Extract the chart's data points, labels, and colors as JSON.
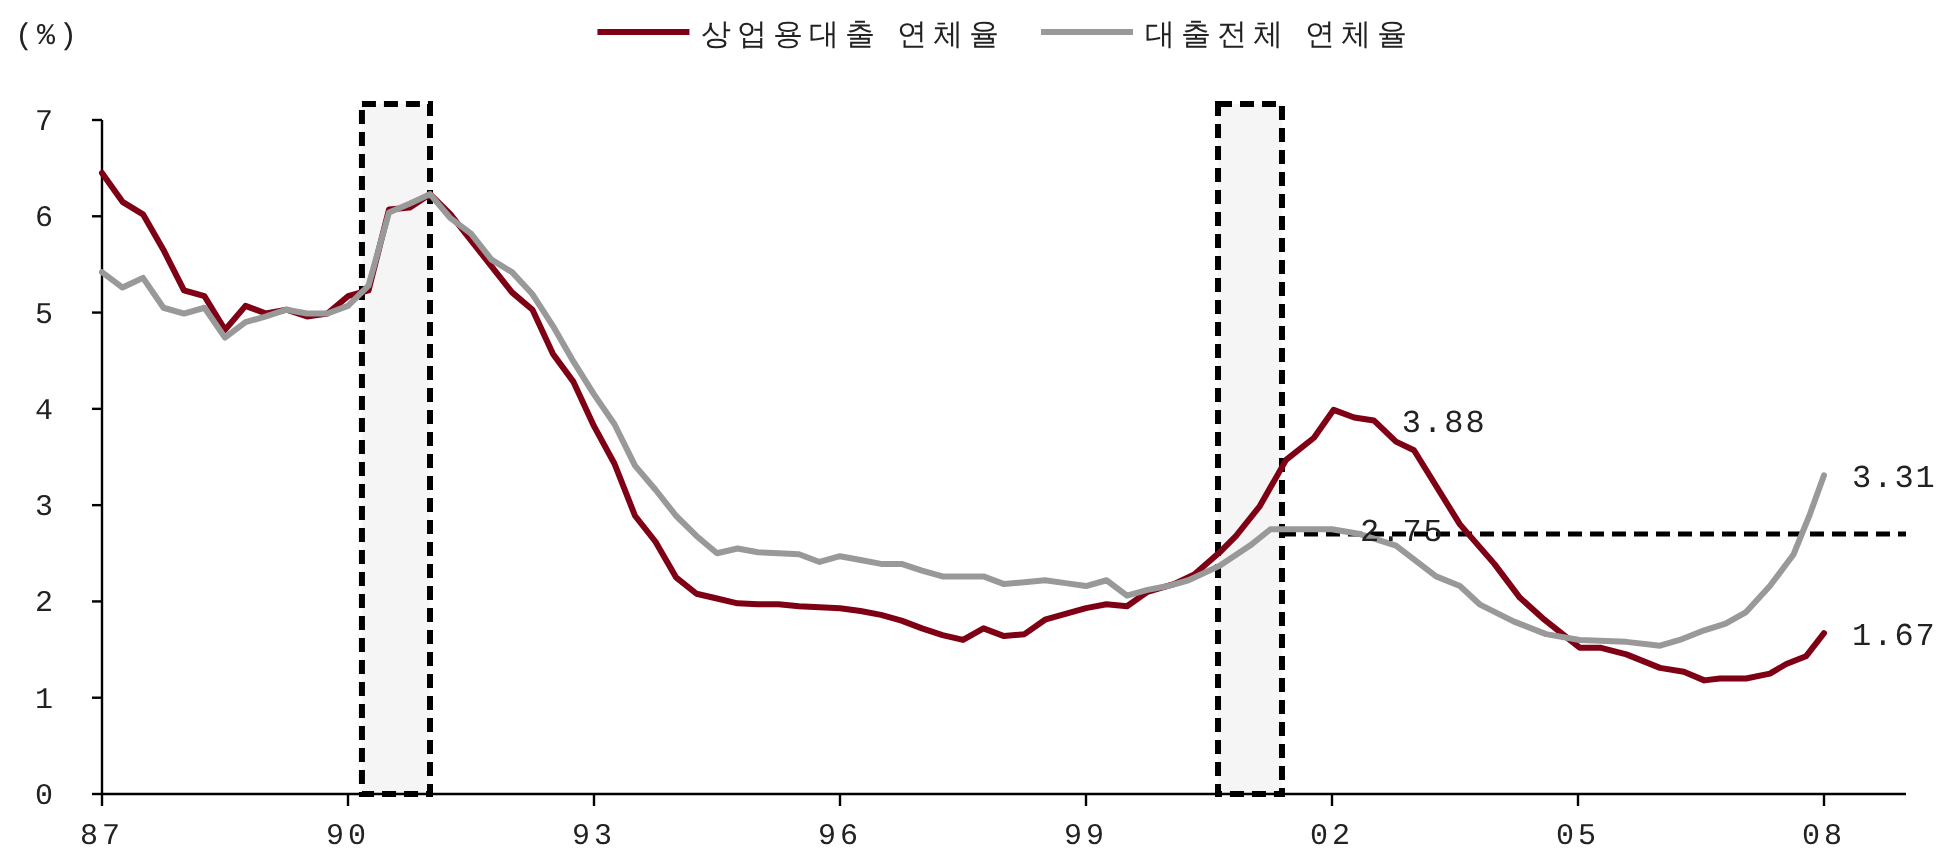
{
  "chart_data": {
    "type": "line",
    "ylabel": "(%)",
    "legend": "top",
    "xlim": [
      1987,
      2009
    ],
    "ylim": [
      0,
      7
    ],
    "xticks": [
      {
        "value": 1987,
        "label": "87"
      },
      {
        "value": 1990,
        "label": "90"
      },
      {
        "value": 1993,
        "label": "93"
      },
      {
        "value": 1996,
        "label": "96"
      },
      {
        "value": 1999,
        "label": "99"
      },
      {
        "value": 2002,
        "label": "02"
      },
      {
        "value": 2005,
        "label": "05"
      },
      {
        "value": 2008,
        "label": "08"
      }
    ],
    "yticks": [
      0,
      1,
      2,
      3,
      4,
      5,
      6,
      7
    ],
    "series": [
      {
        "name": "상업용대출 연체율",
        "color": "#7f0015",
        "x": [
          1987,
          1987.25,
          1987.5,
          1987.75,
          1988,
          1988.25,
          1988.5,
          1988.75,
          1989,
          1989.25,
          1989.5,
          1989.75,
          1990,
          1990.25,
          1990.5,
          1990.75,
          1991,
          1991.25,
          1991.5,
          1991.75,
          1992,
          1992.25,
          1992.5,
          1992.75,
          1993,
          1993.25,
          1993.5,
          1993.75,
          1994,
          1994.25,
          1994.5,
          1994.75,
          1995,
          1995.25,
          1995.5,
          1995.75,
          1996,
          1996.25,
          1996.5,
          1996.75,
          1997,
          1997.25,
          1997.5,
          1997.75,
          1998,
          1998.25,
          1998.5,
          1998.75,
          1999,
          1999.25,
          1999.5,
          1999.75,
          2000.07,
          2000.32,
          2000.63,
          2000.83,
          2001.12,
          2001.44,
          2001.78,
          2002.02,
          2002.27,
          2002.51,
          2002.78,
          2003,
          2003.56,
          2003.98,
          2004.29,
          2004.59,
          2005.02,
          2005.27,
          2005.59,
          2006,
          2006.29,
          2006.54,
          2006.73,
          2007.05,
          2007.34,
          2007.54,
          2007.78,
          2008
        ],
        "values": [
          6.45,
          6.15,
          6.02,
          5.65,
          5.23,
          5.17,
          4.82,
          5.07,
          4.99,
          5.03,
          4.96,
          4.99,
          5.17,
          5.23,
          6.07,
          6.09,
          6.23,
          6.02,
          5.75,
          5.48,
          5.21,
          5.03,
          4.57,
          4.28,
          3.82,
          3.43,
          2.89,
          2.62,
          2.25,
          2.08,
          2.03,
          1.98,
          1.97,
          1.97,
          1.95,
          1.94,
          1.93,
          1.9,
          1.86,
          1.8,
          1.72,
          1.65,
          1.6,
          1.72,
          1.64,
          1.66,
          1.81,
          1.87,
          1.93,
          1.97,
          1.95,
          2.1,
          2.18,
          2.28,
          2.51,
          2.68,
          2.99,
          3.47,
          3.7,
          3.99,
          3.91,
          3.88,
          3.66,
          3.57,
          2.8,
          2.39,
          2.04,
          1.81,
          1.52,
          1.52,
          1.45,
          1.31,
          1.27,
          1.18,
          1.2,
          1.2,
          1.25,
          1.35,
          1.43,
          1.67
        ]
      },
      {
        "name": "대출전체 연체율",
        "color": "#999999",
        "x": [
          1987,
          1987.25,
          1987.5,
          1987.75,
          1988,
          1988.25,
          1988.5,
          1988.75,
          1989,
          1989.25,
          1989.5,
          1989.75,
          1990,
          1990.25,
          1990.5,
          1990.75,
          1991,
          1991.25,
          1991.5,
          1991.75,
          1992,
          1992.25,
          1992.5,
          1992.75,
          1993,
          1993.25,
          1993.5,
          1993.75,
          1994,
          1994.25,
          1994.5,
          1994.75,
          1995,
          1995.25,
          1995.5,
          1995.75,
          1996,
          1996.25,
          1996.5,
          1996.75,
          1997,
          1997.25,
          1997.5,
          1997.75,
          1998,
          1998.25,
          1998.5,
          1998.75,
          1999,
          1999.25,
          1999.5,
          1999.75,
          2000,
          2000.25,
          2000.63,
          2001,
          2001.25,
          2001.5,
          2002,
          2002.34,
          2002.78,
          2003.27,
          2003.56,
          2003.8,
          2004.22,
          2004.61,
          2005.02,
          2005.59,
          2006,
          2006.24,
          2006.54,
          2006.8,
          2007.05,
          2007.34,
          2007.63,
          2007.83,
          2008
        ],
        "values": [
          5.42,
          5.26,
          5.36,
          5.05,
          4.99,
          5.05,
          4.74,
          4.9,
          4.96,
          5.03,
          4.99,
          4.99,
          5.07,
          5.28,
          6.04,
          6.13,
          6.23,
          5.98,
          5.82,
          5.55,
          5.42,
          5.19,
          4.86,
          4.49,
          4.15,
          3.84,
          3.41,
          3.16,
          2.89,
          2.68,
          2.5,
          2.55,
          2.51,
          2.5,
          2.49,
          2.41,
          2.47,
          2.43,
          2.39,
          2.39,
          2.32,
          2.26,
          2.26,
          2.26,
          2.18,
          2.2,
          2.22,
          2.19,
          2.16,
          2.22,
          2.06,
          2.12,
          2.16,
          2.22,
          2.37,
          2.58,
          2.75,
          2.75,
          2.75,
          2.7,
          2.58,
          2.26,
          2.16,
          1.97,
          1.79,
          1.66,
          1.6,
          1.58,
          1.54,
          1.6,
          1.7,
          1.77,
          1.89,
          2.16,
          2.49,
          2.91,
          3.31
        ]
      }
    ],
    "bands": [
      {
        "axis": "x",
        "from": 1990.17,
        "to": 1991,
        "color": "#000000"
      },
      {
        "axis": "x",
        "from": 2000.61,
        "to": 2001.39,
        "color": "#000000"
      }
    ],
    "ref_lines": [
      {
        "axis": "y",
        "value": 2.7,
        "color": "#000000",
        "line_style": "dashed"
      }
    ],
    "annotations": [
      {
        "text": "3.88",
        "x": 2002.51,
        "y": 3.88
      },
      {
        "text": "2.75",
        "x": 2002,
        "y": 2.75
      },
      {
        "text": "3.31",
        "x": 2008,
        "y": 3.31
      },
      {
        "text": "1.67",
        "x": 2008,
        "y": 1.67
      }
    ]
  }
}
